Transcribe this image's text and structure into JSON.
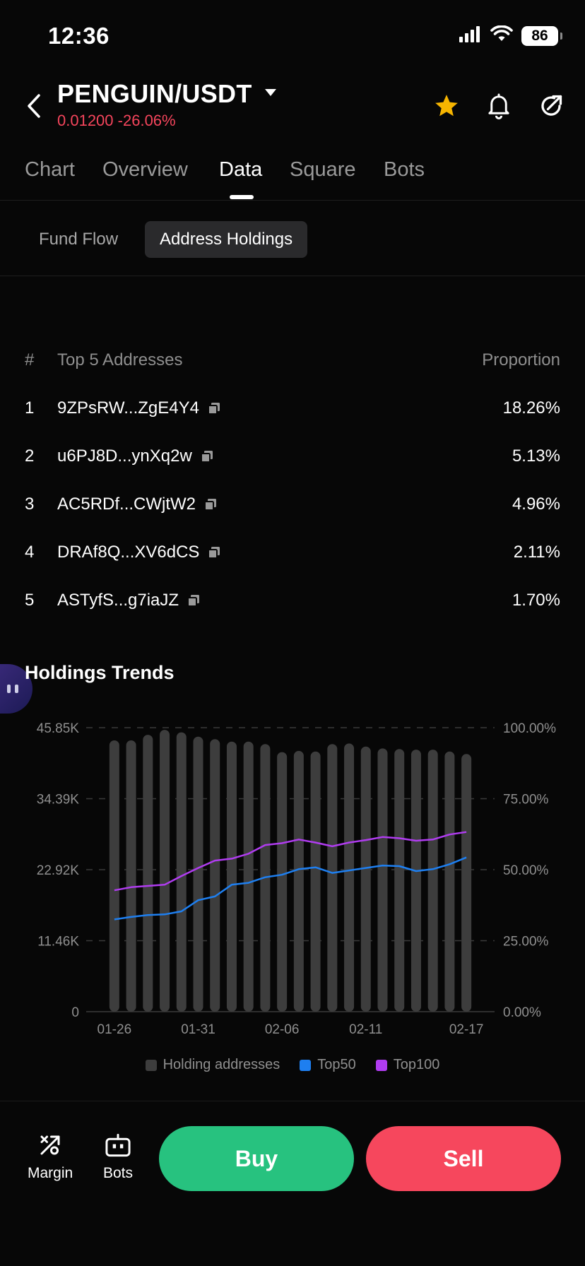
{
  "status_bar": {
    "time": "12:36",
    "battery": "86"
  },
  "header": {
    "pair": "PENGUIN/USDT",
    "price": "0.01200",
    "change": "-26.06%"
  },
  "tabs": [
    {
      "label": "Chart"
    },
    {
      "label": "Overview"
    },
    {
      "label": "Data"
    },
    {
      "label": "Square"
    },
    {
      "label": "Bots"
    }
  ],
  "active_tab": "Data",
  "subtabs": [
    {
      "label": "Fund Flow"
    },
    {
      "label": "Address Holdings"
    }
  ],
  "active_subtab": "Address Holdings",
  "holders_table": {
    "headers": {
      "num": "#",
      "address": "Top 5 Addresses",
      "proportion": "Proportion"
    },
    "rows": [
      {
        "num": "1",
        "address": "9ZPsRW...ZgE4Y4",
        "proportion": "18.26%"
      },
      {
        "num": "2",
        "address": "u6PJ8D...ynXq2w",
        "proportion": "5.13%"
      },
      {
        "num": "3",
        "address": "AC5RDf...CWjtW2",
        "proportion": "4.96%"
      },
      {
        "num": "4",
        "address": "DRAf8Q...XV6dCS",
        "proportion": "2.11%"
      },
      {
        "num": "5",
        "address": "ASTyfS...g7iaJZ",
        "proportion": "1.70%"
      }
    ]
  },
  "section": {
    "title": "Holdings Trends"
  },
  "chart_data": {
    "type": "bar",
    "title": "Holdings Trends",
    "y_left_ticks": [
      "45.85K",
      "34.39K",
      "22.92K",
      "11.46K",
      "0"
    ],
    "y_right_ticks": [
      "100.00%",
      "75.00%",
      "50.00%",
      "25.00%",
      "0.00%"
    ],
    "y_left_range": [
      0,
      45850
    ],
    "y_right_range": [
      0,
      100
    ],
    "x_labels": [
      "01-26",
      "01-31",
      "02-06",
      "02-11",
      "02-17"
    ],
    "x_label_indices": [
      0,
      5,
      10,
      15,
      21
    ],
    "categories": [
      "01-26",
      "01-27",
      "01-28",
      "01-29",
      "01-30",
      "01-31",
      "02-01",
      "02-02",
      "02-03",
      "02-04",
      "02-05",
      "02-06",
      "02-07",
      "02-08",
      "02-09",
      "02-10",
      "02-11",
      "02-12",
      "02-13",
      "02-14",
      "02-15",
      "02-17"
    ],
    "series": [
      {
        "name": "Holding addresses",
        "axis": "left",
        "kind": "bar",
        "color": "#3d3d3d",
        "values": [
          43800,
          43800,
          44700,
          45500,
          45100,
          44400,
          44000,
          43600,
          43600,
          43200,
          41900,
          42100,
          42000,
          43200,
          43300,
          42800,
          42500,
          42400,
          42300,
          42300,
          42000,
          41600
        ]
      },
      {
        "name": "Top50",
        "axis": "left",
        "kind": "line",
        "color": "#1e7ff0",
        "values": [
          14900,
          15300,
          15600,
          15700,
          16200,
          18000,
          18600,
          20500,
          20800,
          21700,
          22100,
          23000,
          23300,
          22400,
          22800,
          23200,
          23600,
          23500,
          22700,
          23000,
          23800,
          24900
        ]
      },
      {
        "name": "Top100",
        "axis": "left",
        "kind": "line",
        "color": "#b03cf0",
        "values": [
          19600,
          20100,
          20300,
          20500,
          21900,
          23200,
          24400,
          24700,
          25500,
          26900,
          27200,
          27800,
          27300,
          26700,
          27300,
          27700,
          28200,
          28000,
          27600,
          27800,
          28600,
          29000
        ]
      }
    ],
    "legend_position": "bottom",
    "grid": true
  },
  "bottom_bar": {
    "margin_label": "Margin",
    "bots_label": "Bots",
    "buy_label": "Buy",
    "sell_label": "Sell"
  },
  "colors": {
    "down": "#f5455c",
    "buy": "#27c27f",
    "sell": "#f6475d",
    "star": "#f7b500",
    "top50": "#1e7ff0",
    "top100": "#b03cf0",
    "bars": "#3d3d3d"
  }
}
